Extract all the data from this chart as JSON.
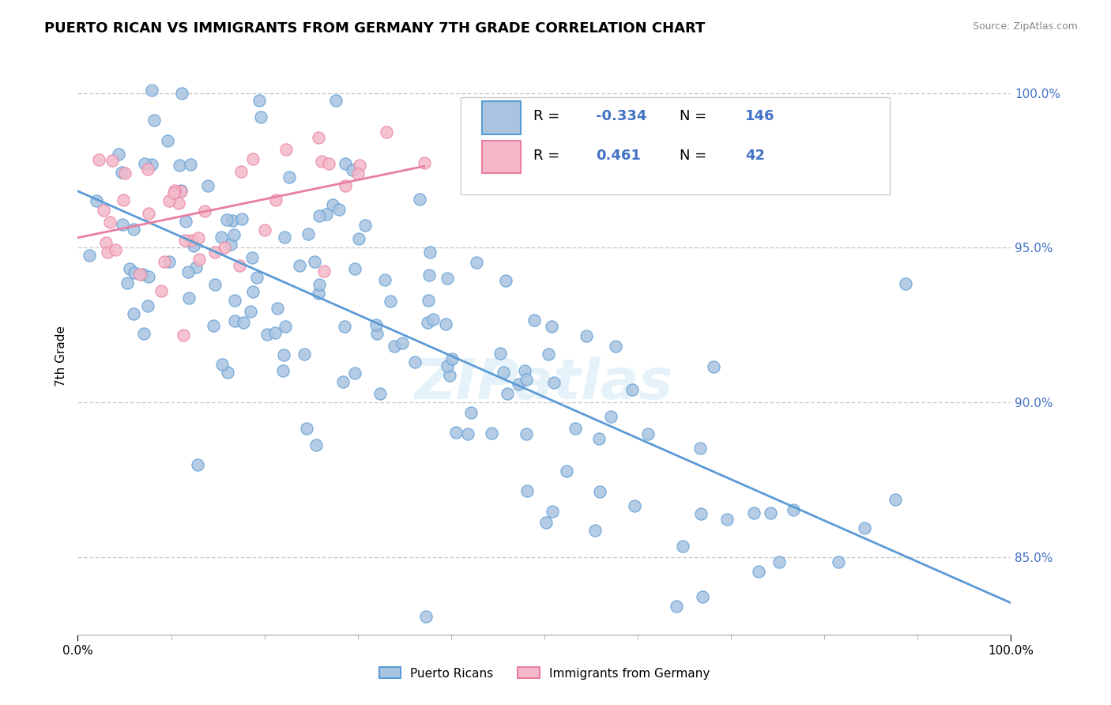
{
  "title": "PUERTO RICAN VS IMMIGRANTS FROM GERMANY 7TH GRADE CORRELATION CHART",
  "source_text": "Source: ZipAtlas.com",
  "ylabel": "7th Grade",
  "xlim": [
    0.0,
    1.0
  ],
  "ylim": [
    0.825,
    1.005
  ],
  "yticks": [
    0.85,
    0.9,
    0.95,
    1.0
  ],
  "blue_R": -0.334,
  "blue_N": 146,
  "pink_R": 0.461,
  "pink_N": 42,
  "blue_color": "#a8c4e0",
  "blue_edge_color": "#5b9bd5",
  "blue_line_color": "#5b9bd5",
  "pink_color": "#f4b8c8",
  "pink_edge_color": "#e87ea1",
  "pink_line_color": "#e87ea1",
  "legend_text_color": "#4472c4",
  "watermark": "ZIPatlas",
  "background_color": "#ffffff",
  "grid_color": "#cccccc"
}
